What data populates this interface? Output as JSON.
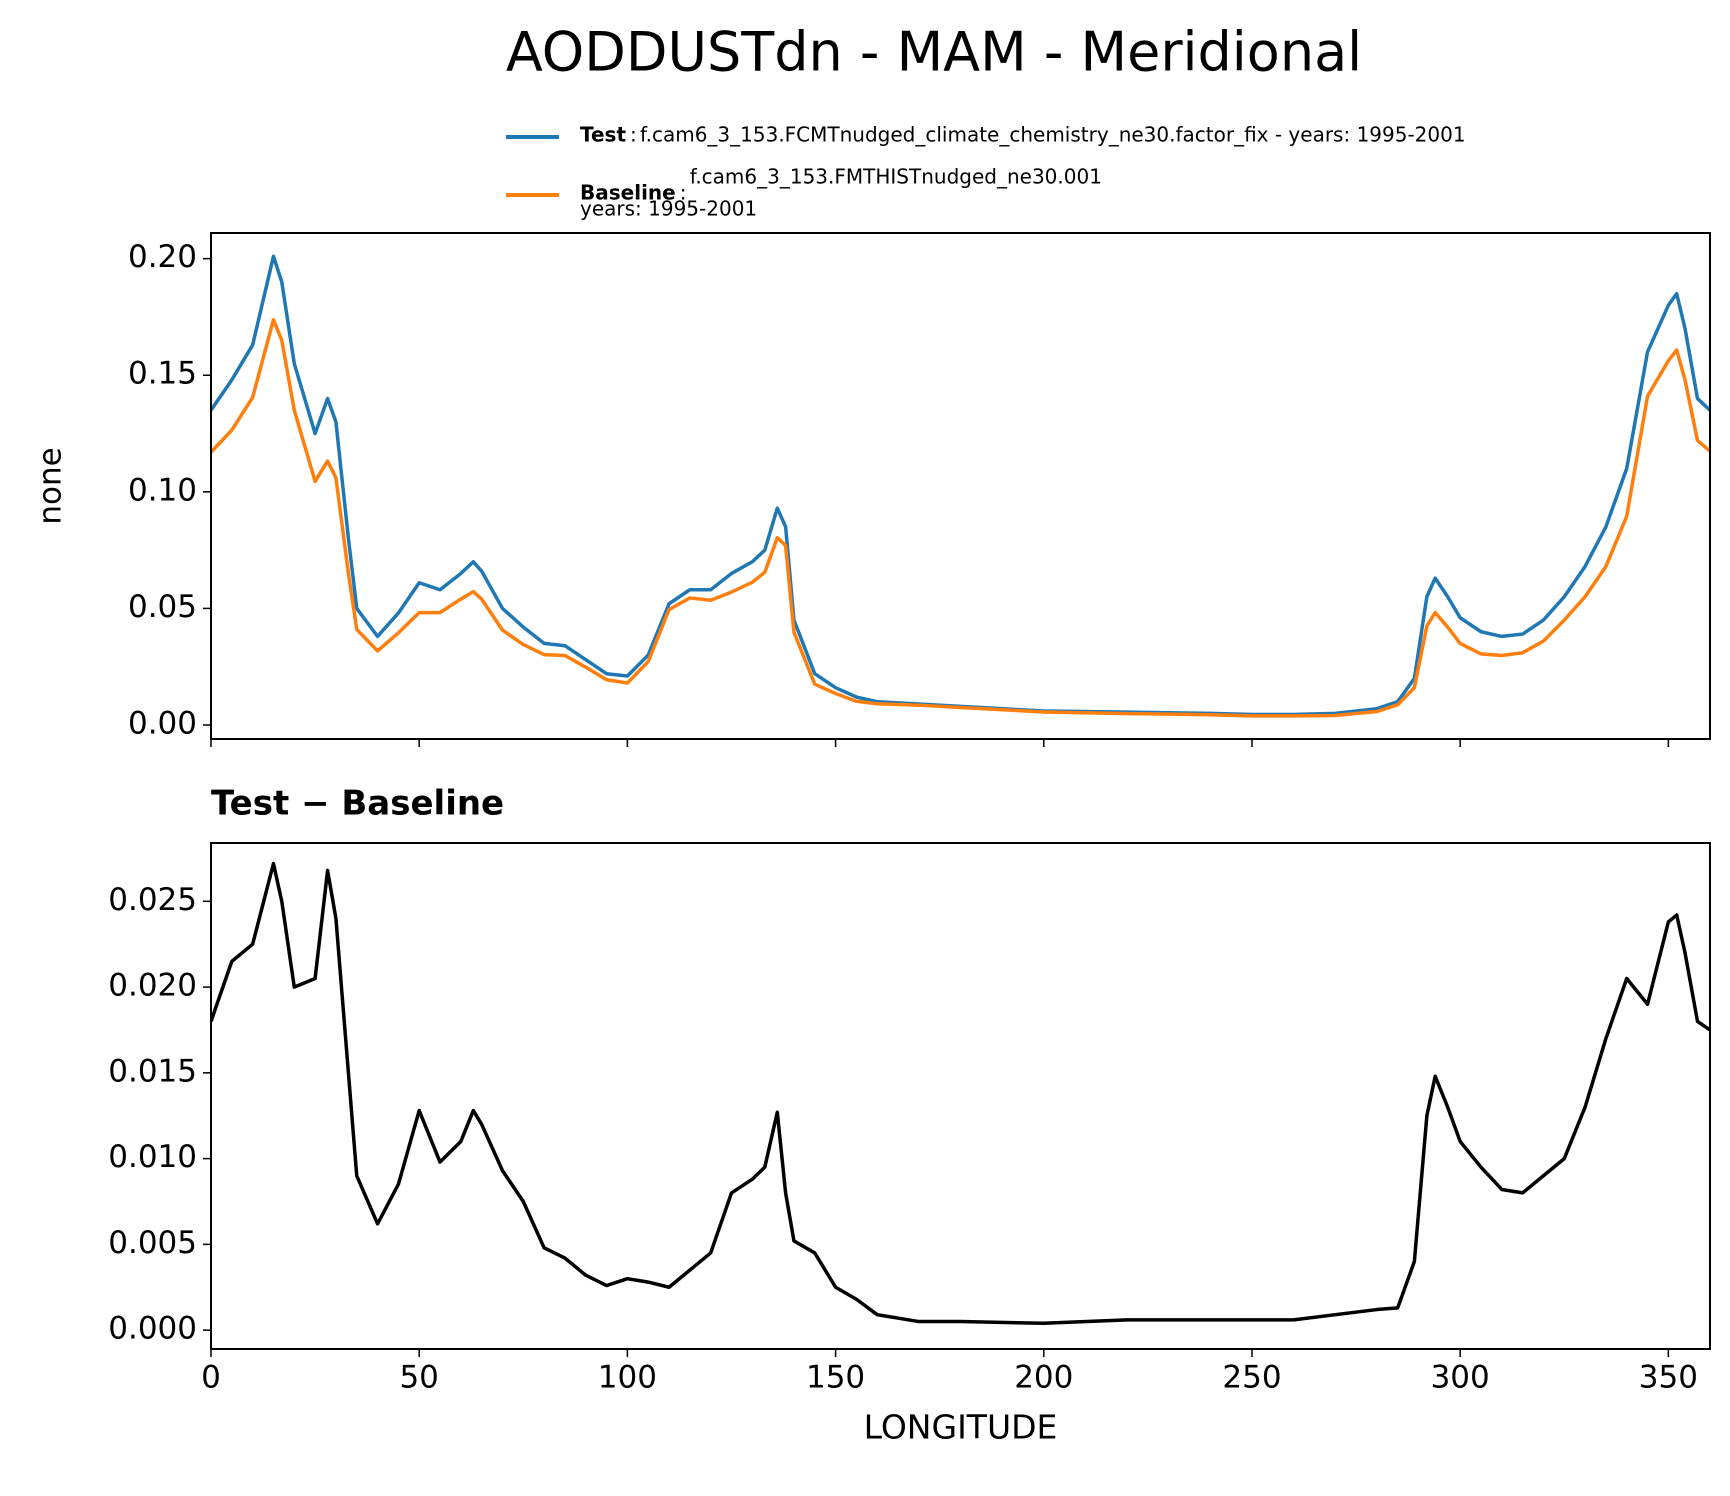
{
  "title": "AODDUSTdn - MAM - Meridional",
  "chart_data": [
    {
      "type": "line",
      "ylabel": "none",
      "x": [
        0,
        5,
        10,
        15,
        17,
        20,
        25,
        28,
        30,
        33,
        35,
        40,
        45,
        50,
        55,
        60,
        63,
        65,
        70,
        75,
        80,
        85,
        90,
        95,
        100,
        105,
        110,
        115,
        120,
        125,
        130,
        133,
        136,
        138,
        140,
        145,
        150,
        155,
        160,
        170,
        180,
        200,
        220,
        240,
        250,
        260,
        270,
        280,
        285,
        289,
        292,
        294,
        297,
        300,
        305,
        310,
        315,
        320,
        325,
        330,
        335,
        340,
        345,
        350,
        352,
        354,
        357,
        360
      ],
      "series": [
        {
          "name": "Test",
          "description": [
            "f.cam6_3_153.FCMTnudged_climate_chemistry_ne30.factor_fix - years: 1995-2001"
          ],
          "color": "#1f77b4",
          "values": [
            0.135,
            0.148,
            0.163,
            0.201,
            0.19,
            0.155,
            0.125,
            0.14,
            0.13,
            0.08,
            0.05,
            0.038,
            0.048,
            0.061,
            0.058,
            0.065,
            0.07,
            0.066,
            0.05,
            0.042,
            0.035,
            0.034,
            0.028,
            0.022,
            0.021,
            0.03,
            0.052,
            0.058,
            0.058,
            0.065,
            0.07,
            0.075,
            0.093,
            0.085,
            0.045,
            0.022,
            0.016,
            0.012,
            0.01,
            0.009,
            0.008,
            0.006,
            0.0055,
            0.005,
            0.0045,
            0.0045,
            0.005,
            0.007,
            0.01,
            0.02,
            0.055,
            0.063,
            0.055,
            0.046,
            0.04,
            0.038,
            0.039,
            0.045,
            0.055,
            0.068,
            0.085,
            0.11,
            0.16,
            0.18,
            0.185,
            0.17,
            0.14,
            0.135
          ]
        },
        {
          "name": "Baseline",
          "description": [
            "f.cam6_3_153.FMTHISTnudged_ne30.001",
            "years: 1995-2001"
          ],
          "color": "#ff7f0e",
          "values": [
            0.117,
            0.1265,
            0.1405,
            0.1738,
            0.165,
            0.135,
            0.1045,
            0.1132,
            0.106,
            0.065,
            0.041,
            0.0318,
            0.0395,
            0.0482,
            0.0482,
            0.054,
            0.0572,
            0.054,
            0.0407,
            0.0345,
            0.0302,
            0.0298,
            0.0248,
            0.0194,
            0.018,
            0.0272,
            0.0495,
            0.0545,
            0.0535,
            0.057,
            0.0612,
            0.0655,
            0.0803,
            0.077,
            0.0398,
            0.0175,
            0.0135,
            0.0102,
            0.0091,
            0.0085,
            0.0075,
            0.0056,
            0.0049,
            0.0044,
            0.0039,
            0.0039,
            0.0041,
            0.0058,
            0.0087,
            0.016,
            0.0425,
            0.0482,
            0.042,
            0.035,
            0.0305,
            0.0298,
            0.031,
            0.036,
            0.045,
            0.055,
            0.068,
            0.0895,
            0.141,
            0.1562,
            0.1608,
            0.148,
            0.122,
            0.1175
          ]
        }
      ],
      "xlim": [
        0,
        360
      ],
      "xticks": [
        0,
        50,
        100,
        150,
        200,
        250,
        300,
        350
      ],
      "ylim": [
        -0.006,
        0.211
      ],
      "yticks": [
        {
          "value": 0,
          "label": "0.00"
        },
        {
          "value": 0.05,
          "label": "0.05"
        },
        {
          "value": 0.1,
          "label": "0.10"
        },
        {
          "value": 0.15,
          "label": "0.15"
        },
        {
          "value": 0.2,
          "label": "0.20"
        }
      ]
    },
    {
      "type": "line",
      "title": "Test − Baseline",
      "xlabel": "LONGITUDE",
      "x": [
        0,
        5,
        10,
        15,
        17,
        20,
        25,
        28,
        30,
        33,
        35,
        40,
        45,
        50,
        55,
        60,
        63,
        65,
        70,
        75,
        80,
        85,
        90,
        95,
        100,
        105,
        110,
        115,
        120,
        125,
        130,
        133,
        136,
        138,
        140,
        145,
        150,
        155,
        160,
        170,
        180,
        200,
        220,
        240,
        250,
        260,
        270,
        280,
        285,
        289,
        292,
        294,
        297,
        300,
        305,
        310,
        315,
        320,
        325,
        330,
        335,
        340,
        345,
        350,
        352,
        354,
        357,
        360
      ],
      "series": [
        {
          "color": "#000000",
          "values": [
            0.018,
            0.0215,
            0.0225,
            0.0272,
            0.025,
            0.02,
            0.0205,
            0.0268,
            0.024,
            0.015,
            0.009,
            0.0062,
            0.0085,
            0.0128,
            0.0098,
            0.011,
            0.0128,
            0.012,
            0.0093,
            0.0075,
            0.0048,
            0.0042,
            0.0032,
            0.0026,
            0.003,
            0.0028,
            0.0025,
            0.0035,
            0.0045,
            0.008,
            0.0088,
            0.0095,
            0.0127,
            0.008,
            0.0052,
            0.0045,
            0.0025,
            0.0018,
            0.0009,
            0.0005,
            0.0005,
            0.0004,
            0.0006,
            0.0006,
            0.0006,
            0.0006,
            0.0009,
            0.0012,
            0.0013,
            0.004,
            0.0125,
            0.0148,
            0.013,
            0.011,
            0.0095,
            0.0082,
            0.008,
            0.009,
            0.01,
            0.013,
            0.017,
            0.0205,
            0.019,
            0.0238,
            0.0242,
            0.022,
            0.018,
            0.0175
          ]
        }
      ],
      "xlim": [
        0,
        360
      ],
      "xticks": [
        0,
        50,
        100,
        150,
        200,
        250,
        300,
        350
      ],
      "ylim": [
        -0.0011,
        0.0284
      ],
      "yticks": [
        {
          "value": 0,
          "label": "0.000"
        },
        {
          "value": 0.005,
          "label": "0.005"
        },
        {
          "value": 0.01,
          "label": "0.010"
        },
        {
          "value": 0.015,
          "label": "0.015"
        },
        {
          "value": 0.02,
          "label": "0.020"
        },
        {
          "value": 0.025,
          "label": "0.025"
        }
      ]
    }
  ]
}
